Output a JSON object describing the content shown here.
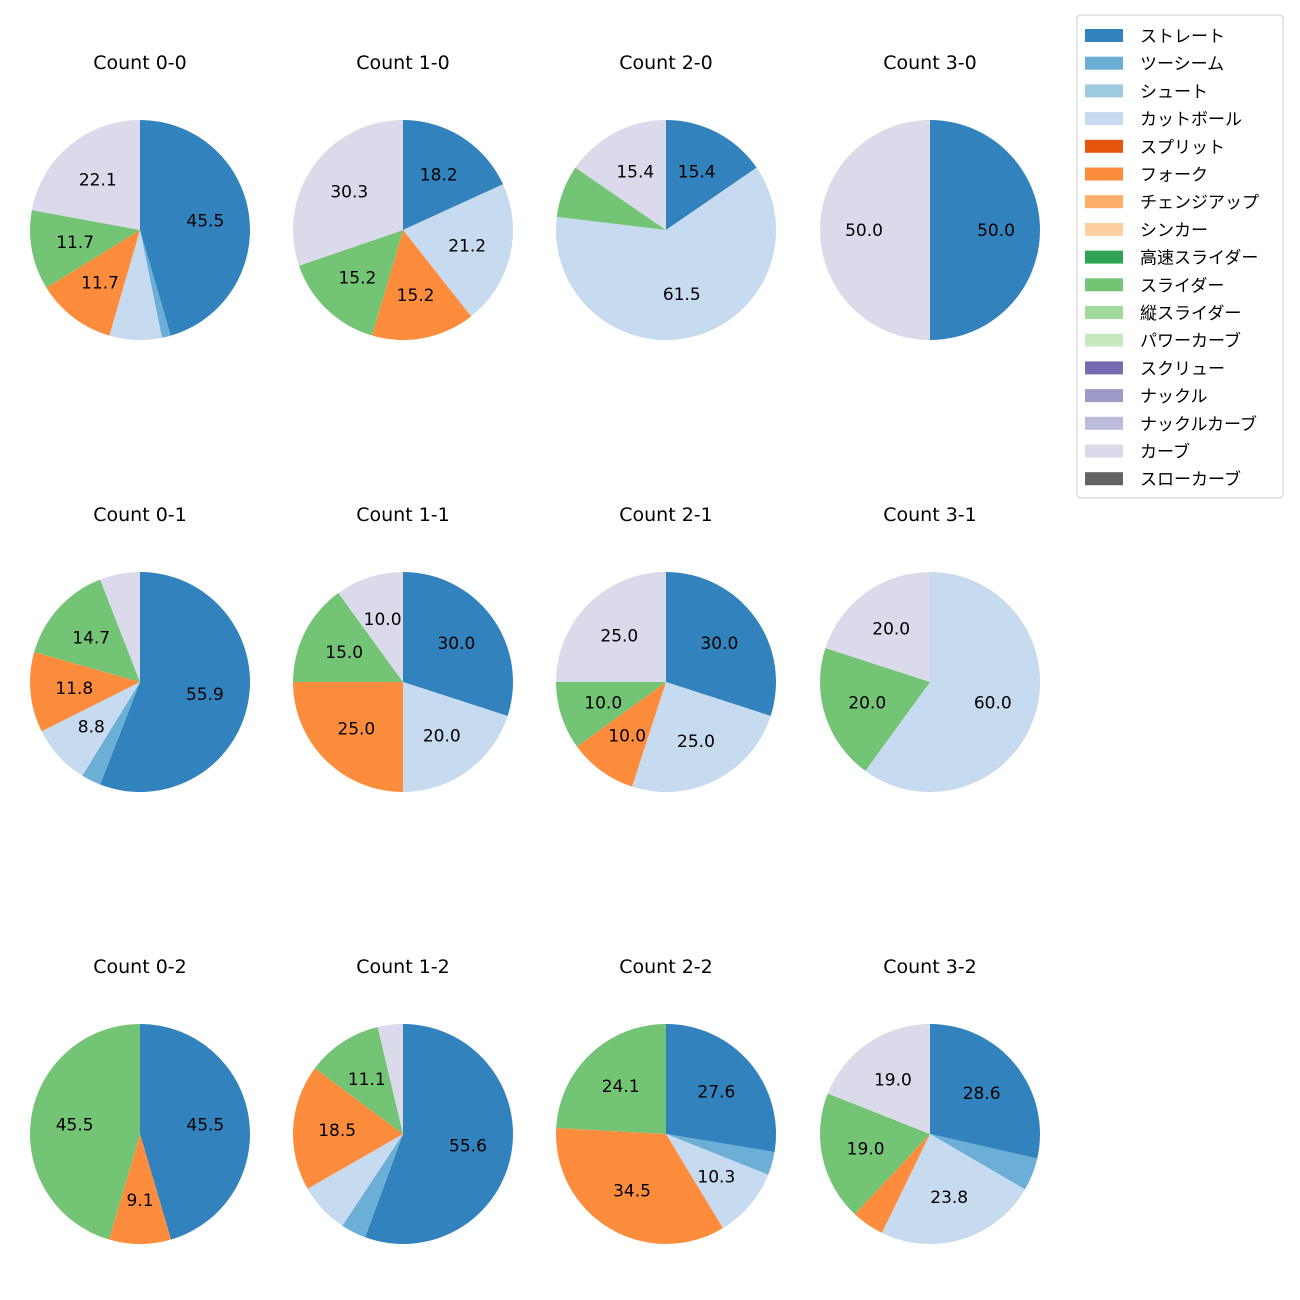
{
  "chart_data": {
    "type": "pie",
    "legend_position": "top-right",
    "categories": [
      {
        "name": "ストレート",
        "color": "#3182bd"
      },
      {
        "name": "ツーシーム",
        "color": "#6baed6"
      },
      {
        "name": "シュート",
        "color": "#9ecae1"
      },
      {
        "name": "カットボール",
        "color": "#c6dbef"
      },
      {
        "name": "スプリット",
        "color": "#e6550d"
      },
      {
        "name": "フォーク",
        "color": "#fd8d3c"
      },
      {
        "name": "チェンジアップ",
        "color": "#fdae6b"
      },
      {
        "name": "シンカー",
        "color": "#fdd0a2"
      },
      {
        "name": "高速スライダー",
        "color": "#31a354"
      },
      {
        "name": "スライダー",
        "color": "#74c476"
      },
      {
        "name": "縦スライダー",
        "color": "#a1d99b"
      },
      {
        "name": "パワーカーブ",
        "color": "#c7e9c0"
      },
      {
        "name": "スクリュー",
        "color": "#756bb1"
      },
      {
        "name": "ナックル",
        "color": "#9e9ac8"
      },
      {
        "name": "ナックルカーブ",
        "color": "#bcbddc"
      },
      {
        "name": "カーブ",
        "color": "#dadaeb"
      },
      {
        "name": "スローカーブ",
        "color": "#636363"
      }
    ],
    "pies": [
      {
        "title": "Count 0-0",
        "slices": [
          {
            "category": "ストレート",
            "value": 45.5,
            "label": "45.5"
          },
          {
            "category": "ツーシーム",
            "value": 1.3,
            "label": ""
          },
          {
            "category": "カットボール",
            "value": 7.7,
            "label": ""
          },
          {
            "category": "フォーク",
            "value": 11.7,
            "label": "11.7"
          },
          {
            "category": "スライダー",
            "value": 11.7,
            "label": "11.7"
          },
          {
            "category": "カーブ",
            "value": 22.1,
            "label": "22.1"
          }
        ]
      },
      {
        "title": "Count 1-0",
        "slices": [
          {
            "category": "ストレート",
            "value": 18.2,
            "label": "18.2"
          },
          {
            "category": "カットボール",
            "value": 21.2,
            "label": "21.2"
          },
          {
            "category": "フォーク",
            "value": 15.2,
            "label": "15.2"
          },
          {
            "category": "スライダー",
            "value": 15.2,
            "label": "15.2"
          },
          {
            "category": "カーブ",
            "value": 30.3,
            "label": "30.3"
          }
        ]
      },
      {
        "title": "Count 2-0",
        "slices": [
          {
            "category": "ストレート",
            "value": 15.4,
            "label": "15.4"
          },
          {
            "category": "カットボール",
            "value": 61.5,
            "label": "61.5"
          },
          {
            "category": "スライダー",
            "value": 7.7,
            "label": ""
          },
          {
            "category": "カーブ",
            "value": 15.4,
            "label": "15.4"
          }
        ]
      },
      {
        "title": "Count 3-0",
        "slices": [
          {
            "category": "ストレート",
            "value": 50.0,
            "label": "50.0"
          },
          {
            "category": "カーブ",
            "value": 50.0,
            "label": "50.0"
          }
        ]
      },
      {
        "title": "Count 0-1",
        "slices": [
          {
            "category": "ストレート",
            "value": 55.9,
            "label": "55.9"
          },
          {
            "category": "ツーシーム",
            "value": 2.9,
            "label": ""
          },
          {
            "category": "カットボール",
            "value": 8.8,
            "label": "8.8"
          },
          {
            "category": "フォーク",
            "value": 11.8,
            "label": "11.8"
          },
          {
            "category": "スライダー",
            "value": 14.7,
            "label": "14.7"
          },
          {
            "category": "カーブ",
            "value": 5.9,
            "label": ""
          }
        ]
      },
      {
        "title": "Count 1-1",
        "slices": [
          {
            "category": "ストレート",
            "value": 30.0,
            "label": "30.0"
          },
          {
            "category": "カットボール",
            "value": 20.0,
            "label": "20.0"
          },
          {
            "category": "フォーク",
            "value": 25.0,
            "label": "25.0"
          },
          {
            "category": "スライダー",
            "value": 15.0,
            "label": "15.0"
          },
          {
            "category": "カーブ",
            "value": 10.0,
            "label": "10.0"
          }
        ]
      },
      {
        "title": "Count 2-1",
        "slices": [
          {
            "category": "ストレート",
            "value": 30.0,
            "label": "30.0"
          },
          {
            "category": "カットボール",
            "value": 25.0,
            "label": "25.0"
          },
          {
            "category": "フォーク",
            "value": 10.0,
            "label": "10.0"
          },
          {
            "category": "スライダー",
            "value": 10.0,
            "label": "10.0"
          },
          {
            "category": "カーブ",
            "value": 25.0,
            "label": "25.0"
          }
        ]
      },
      {
        "title": "Count 3-1",
        "slices": [
          {
            "category": "カットボール",
            "value": 60.0,
            "label": "60.0"
          },
          {
            "category": "スライダー",
            "value": 20.0,
            "label": "20.0"
          },
          {
            "category": "カーブ",
            "value": 20.0,
            "label": "20.0"
          }
        ]
      },
      {
        "title": "Count 0-2",
        "slices": [
          {
            "category": "ストレート",
            "value": 45.5,
            "label": "45.5"
          },
          {
            "category": "フォーク",
            "value": 9.1,
            "label": "9.1"
          },
          {
            "category": "スライダー",
            "value": 45.5,
            "label": "45.5"
          }
        ]
      },
      {
        "title": "Count 1-2",
        "slices": [
          {
            "category": "ストレート",
            "value": 55.6,
            "label": "55.6"
          },
          {
            "category": "ツーシーム",
            "value": 3.7,
            "label": ""
          },
          {
            "category": "カットボール",
            "value": 7.4,
            "label": ""
          },
          {
            "category": "フォーク",
            "value": 18.5,
            "label": "18.5"
          },
          {
            "category": "スライダー",
            "value": 11.1,
            "label": "11.1"
          },
          {
            "category": "カーブ",
            "value": 3.7,
            "label": ""
          }
        ]
      },
      {
        "title": "Count 2-2",
        "slices": [
          {
            "category": "ストレート",
            "value": 27.6,
            "label": "27.6"
          },
          {
            "category": "ツーシーム",
            "value": 3.4,
            "label": ""
          },
          {
            "category": "カットボール",
            "value": 10.3,
            "label": "10.3"
          },
          {
            "category": "フォーク",
            "value": 34.5,
            "label": "34.5"
          },
          {
            "category": "スライダー",
            "value": 24.1,
            "label": "24.1"
          }
        ]
      },
      {
        "title": "Count 3-2",
        "slices": [
          {
            "category": "ストレート",
            "value": 28.6,
            "label": "28.6"
          },
          {
            "category": "ツーシーム",
            "value": 4.8,
            "label": ""
          },
          {
            "category": "カットボール",
            "value": 23.8,
            "label": "23.8"
          },
          {
            "category": "フォーク",
            "value": 4.8,
            "label": ""
          },
          {
            "category": "スライダー",
            "value": 19.0,
            "label": "19.0"
          },
          {
            "category": "カーブ",
            "value": 19.0,
            "label": "19.0"
          }
        ]
      }
    ]
  }
}
